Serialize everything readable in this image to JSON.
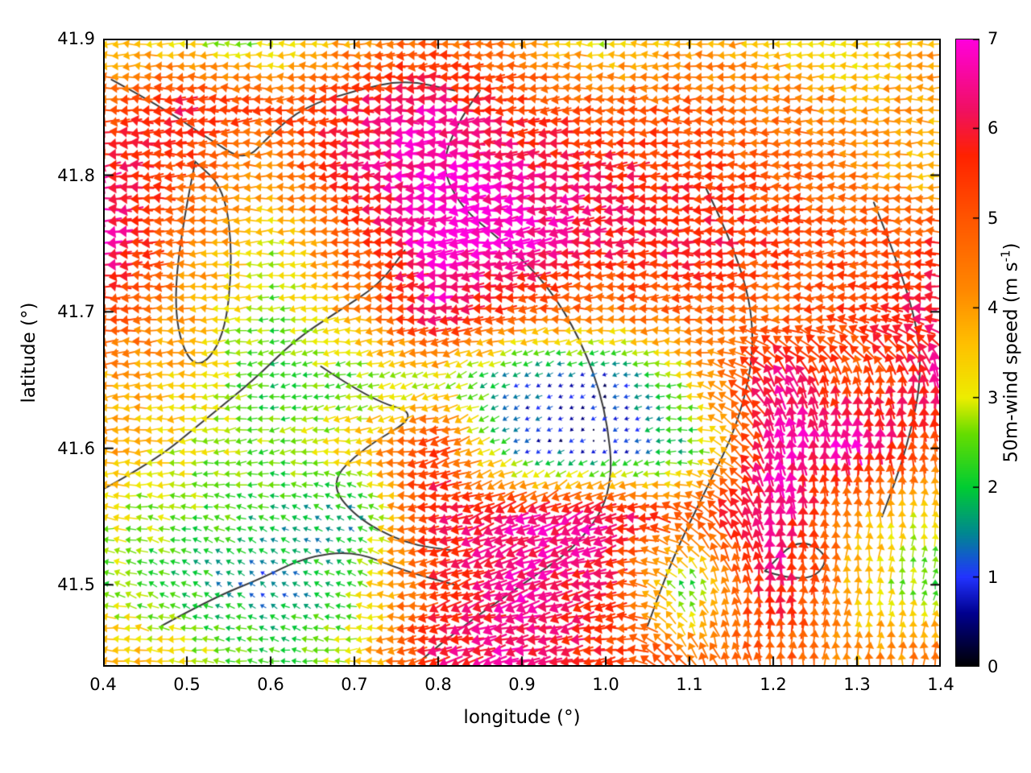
{
  "figure": {
    "xlabel": "longitude (°)",
    "ylabel": "latitude (°)",
    "colorbar_label_prefix": "50m-wind speed (m s",
    "colorbar_label_sup": "-1",
    "colorbar_label_suffix": ")",
    "background": "#ffffff",
    "contour_color": "#3a3a3a"
  },
  "chart_data": {
    "type": "scatter",
    "subtype": "quiver-vector-field-with-contours",
    "title": "",
    "xlabel": "longitude (°)",
    "ylabel": "latitude (°)",
    "xlim": [
      0.4,
      1.4
    ],
    "ylim": [
      41.44,
      41.9
    ],
    "grid": false,
    "x_tick_labels": [
      "0.4",
      "0.5",
      "0.6",
      "0.7",
      "0.8",
      "0.9",
      "1.0",
      "1.1",
      "1.2",
      "1.3",
      "1.4"
    ],
    "x_tick_values": [
      0.4,
      0.5,
      0.6,
      0.7,
      0.8,
      0.9,
      1.0,
      1.1,
      1.2,
      1.3,
      1.4
    ],
    "y_tick_labels": [
      "41.9",
      "41.8",
      "41.7",
      "41.6",
      "41.5"
    ],
    "y_tick_values": [
      41.9,
      41.8,
      41.7,
      41.6,
      41.5
    ],
    "colorbar": {
      "label": "50m-wind speed (m s-1)",
      "min": 0,
      "max": 7,
      "tick_values": [
        0,
        1,
        2,
        3,
        4,
        5,
        6,
        7
      ],
      "tick_labels": [
        "0",
        "1",
        "2",
        "3",
        "4",
        "5",
        "6",
        "7"
      ],
      "colormap": [
        [
          0.0,
          "#000000"
        ],
        [
          0.6,
          "#00008f"
        ],
        [
          1.0,
          "#2233ff"
        ],
        [
          1.5,
          "#00898f"
        ],
        [
          2.0,
          "#00cc33"
        ],
        [
          2.6,
          "#66dd00"
        ],
        [
          3.0,
          "#eded00"
        ],
        [
          3.6,
          "#ffc000"
        ],
        [
          4.2,
          "#ff8800"
        ],
        [
          5.0,
          "#ff5500"
        ],
        [
          5.7,
          "#ff2200"
        ],
        [
          6.2,
          "#f01060"
        ],
        [
          7.0,
          "#ff00dd"
        ]
      ]
    },
    "wind_grid": {
      "comment": "coarse field sampled off the figure; speed in m/s (0-7), direction in degrees CCW from east (180 = blowing toward west)",
      "lons": [
        0.4,
        0.5,
        0.6,
        0.7,
        0.8,
        0.9,
        1.0,
        1.1,
        1.2,
        1.3,
        1.4
      ],
      "lats": [
        41.9,
        41.85,
        41.8,
        41.75,
        41.7,
        41.65,
        41.6,
        41.55,
        41.5,
        41.45
      ],
      "speed": [
        [
          3.5,
          3.0,
          2.5,
          4.0,
          5.0,
          4.0,
          3.0,
          4.0,
          3.5,
          3.0,
          4.0
        ],
        [
          5.0,
          6.0,
          5.0,
          6.0,
          6.5,
          5.5,
          5.0,
          5.0,
          4.5,
          4.0,
          4.0
        ],
        [
          6.5,
          5.0,
          4.0,
          6.0,
          7.0,
          6.5,
          6.0,
          5.5,
          5.0,
          4.5,
          3.5
        ],
        [
          7.0,
          4.5,
          3.0,
          5.0,
          7.0,
          7.0,
          6.0,
          6.0,
          5.5,
          5.0,
          5.5
        ],
        [
          5.5,
          4.0,
          2.5,
          4.0,
          6.5,
          5.0,
          4.5,
          5.0,
          4.5,
          5.5,
          6.0
        ],
        [
          4.0,
          3.5,
          2.0,
          2.5,
          3.0,
          1.2,
          0.8,
          3.0,
          6.5,
          5.0,
          6.5
        ],
        [
          4.0,
          3.0,
          2.5,
          3.5,
          5.5,
          1.0,
          0.5,
          2.0,
          6.5,
          6.8,
          5.0
        ],
        [
          3.0,
          2.5,
          2.0,
          1.5,
          6.0,
          6.5,
          6.5,
          5.0,
          6.8,
          4.0,
          3.0
        ],
        [
          2.5,
          2.0,
          1.2,
          2.5,
          5.5,
          6.5,
          6.0,
          2.0,
          6.5,
          3.5,
          2.0
        ],
        [
          4.0,
          3.0,
          2.2,
          3.0,
          6.0,
          6.5,
          5.5,
          4.5,
          5.0,
          4.0,
          4.5
        ]
      ],
      "direction_deg": [
        [
          180,
          185,
          175,
          180,
          185,
          180,
          175,
          180,
          185,
          180,
          175
        ],
        [
          180,
          180,
          185,
          180,
          180,
          185,
          180,
          180,
          175,
          180,
          180
        ],
        [
          185,
          180,
          180,
          185,
          180,
          180,
          185,
          180,
          180,
          175,
          180
        ],
        [
          180,
          185,
          180,
          180,
          185,
          190,
          185,
          180,
          180,
          185,
          180
        ],
        [
          180,
          180,
          185,
          180,
          185,
          185,
          180,
          185,
          180,
          175,
          170
        ],
        [
          185,
          180,
          190,
          195,
          200,
          210,
          200,
          170,
          115,
          100,
          95
        ],
        [
          180,
          185,
          190,
          185,
          195,
          210,
          220,
          180,
          100,
          95,
          90
        ],
        [
          175,
          170,
          160,
          150,
          195,
          200,
          200,
          150,
          95,
          90,
          85
        ],
        [
          165,
          150,
          140,
          160,
          200,
          200,
          195,
          120,
          90,
          85,
          80
        ],
        [
          175,
          180,
          170,
          185,
          195,
          195,
          190,
          120,
          90,
          85,
          90
        ]
      ]
    },
    "arrow_grid": {
      "nx": 76,
      "ny": 57
    },
    "contours": [
      [
        [
          0.41,
          41.87
        ],
        [
          0.47,
          41.85
        ],
        [
          0.53,
          41.825
        ],
        [
          0.57,
          41.81
        ],
        [
          0.6,
          41.83
        ],
        [
          0.64,
          41.85
        ],
        [
          0.7,
          41.862
        ],
        [
          0.76,
          41.87
        ],
        [
          0.82,
          41.862
        ]
      ],
      [
        [
          0.51,
          41.81
        ],
        [
          0.49,
          41.75
        ],
        [
          0.485,
          41.69
        ],
        [
          0.51,
          41.655
        ],
        [
          0.545,
          41.68
        ],
        [
          0.555,
          41.74
        ],
        [
          0.545,
          41.79
        ],
        [
          0.51,
          41.81
        ]
      ],
      [
        [
          0.85,
          41.862
        ],
        [
          0.8,
          41.82
        ],
        [
          0.82,
          41.78
        ],
        [
          0.88,
          41.75
        ],
        [
          0.93,
          41.72
        ],
        [
          0.97,
          41.68
        ],
        [
          1.0,
          41.63
        ],
        [
          1.01,
          41.57
        ],
        [
          0.97,
          41.53
        ],
        [
          0.9,
          41.5
        ],
        [
          0.83,
          41.47
        ],
        [
          0.78,
          41.445
        ]
      ],
      [
        [
          0.4,
          41.57
        ],
        [
          0.46,
          41.59
        ],
        [
          0.52,
          41.62
        ],
        [
          0.58,
          41.65
        ],
        [
          0.63,
          41.68
        ],
        [
          0.68,
          41.7
        ],
        [
          0.73,
          41.72
        ],
        [
          0.76,
          41.745
        ]
      ],
      [
        [
          0.66,
          41.66
        ],
        [
          0.72,
          41.635
        ],
        [
          0.78,
          41.625
        ],
        [
          0.71,
          41.6
        ],
        [
          0.67,
          41.575
        ],
        [
          0.7,
          41.55
        ],
        [
          0.76,
          41.53
        ],
        [
          0.82,
          41.525
        ]
      ],
      [
        [
          0.47,
          41.47
        ],
        [
          0.53,
          41.49
        ],
        [
          0.59,
          41.505
        ],
        [
          0.64,
          41.52
        ],
        [
          0.7,
          41.525
        ],
        [
          0.76,
          41.51
        ],
        [
          0.82,
          41.5
        ]
      ],
      [
        [
          1.12,
          41.79
        ],
        [
          1.16,
          41.74
        ],
        [
          1.18,
          41.68
        ],
        [
          1.16,
          41.62
        ],
        [
          1.12,
          41.57
        ],
        [
          1.08,
          41.52
        ],
        [
          1.05,
          41.47
        ]
      ],
      [
        [
          1.32,
          41.78
        ],
        [
          1.36,
          41.72
        ],
        [
          1.38,
          41.66
        ],
        [
          1.36,
          41.6
        ],
        [
          1.33,
          41.55
        ]
      ],
      [
        [
          1.19,
          41.51
        ],
        [
          1.24,
          41.5
        ],
        [
          1.27,
          41.52
        ],
        [
          1.23,
          41.535
        ],
        [
          1.19,
          41.51
        ]
      ]
    ]
  }
}
